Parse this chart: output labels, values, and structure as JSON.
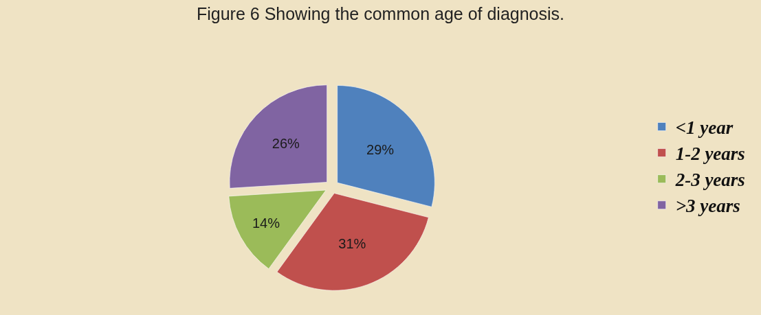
{
  "chart_data": {
    "type": "pie",
    "title": "Figure 6 Showing the common age of diagnosis.",
    "categories": [
      "<1 year",
      "1-2 years",
      "2-3 years",
      ">3 years"
    ],
    "values": [
      29,
      31,
      14,
      26
    ],
    "colors": [
      "#4f81bd",
      "#c0504d",
      "#9bbb59",
      "#8064a2"
    ],
    "value_labels": [
      "29%",
      "31%",
      "14%",
      "26%"
    ],
    "legend": "right"
  }
}
